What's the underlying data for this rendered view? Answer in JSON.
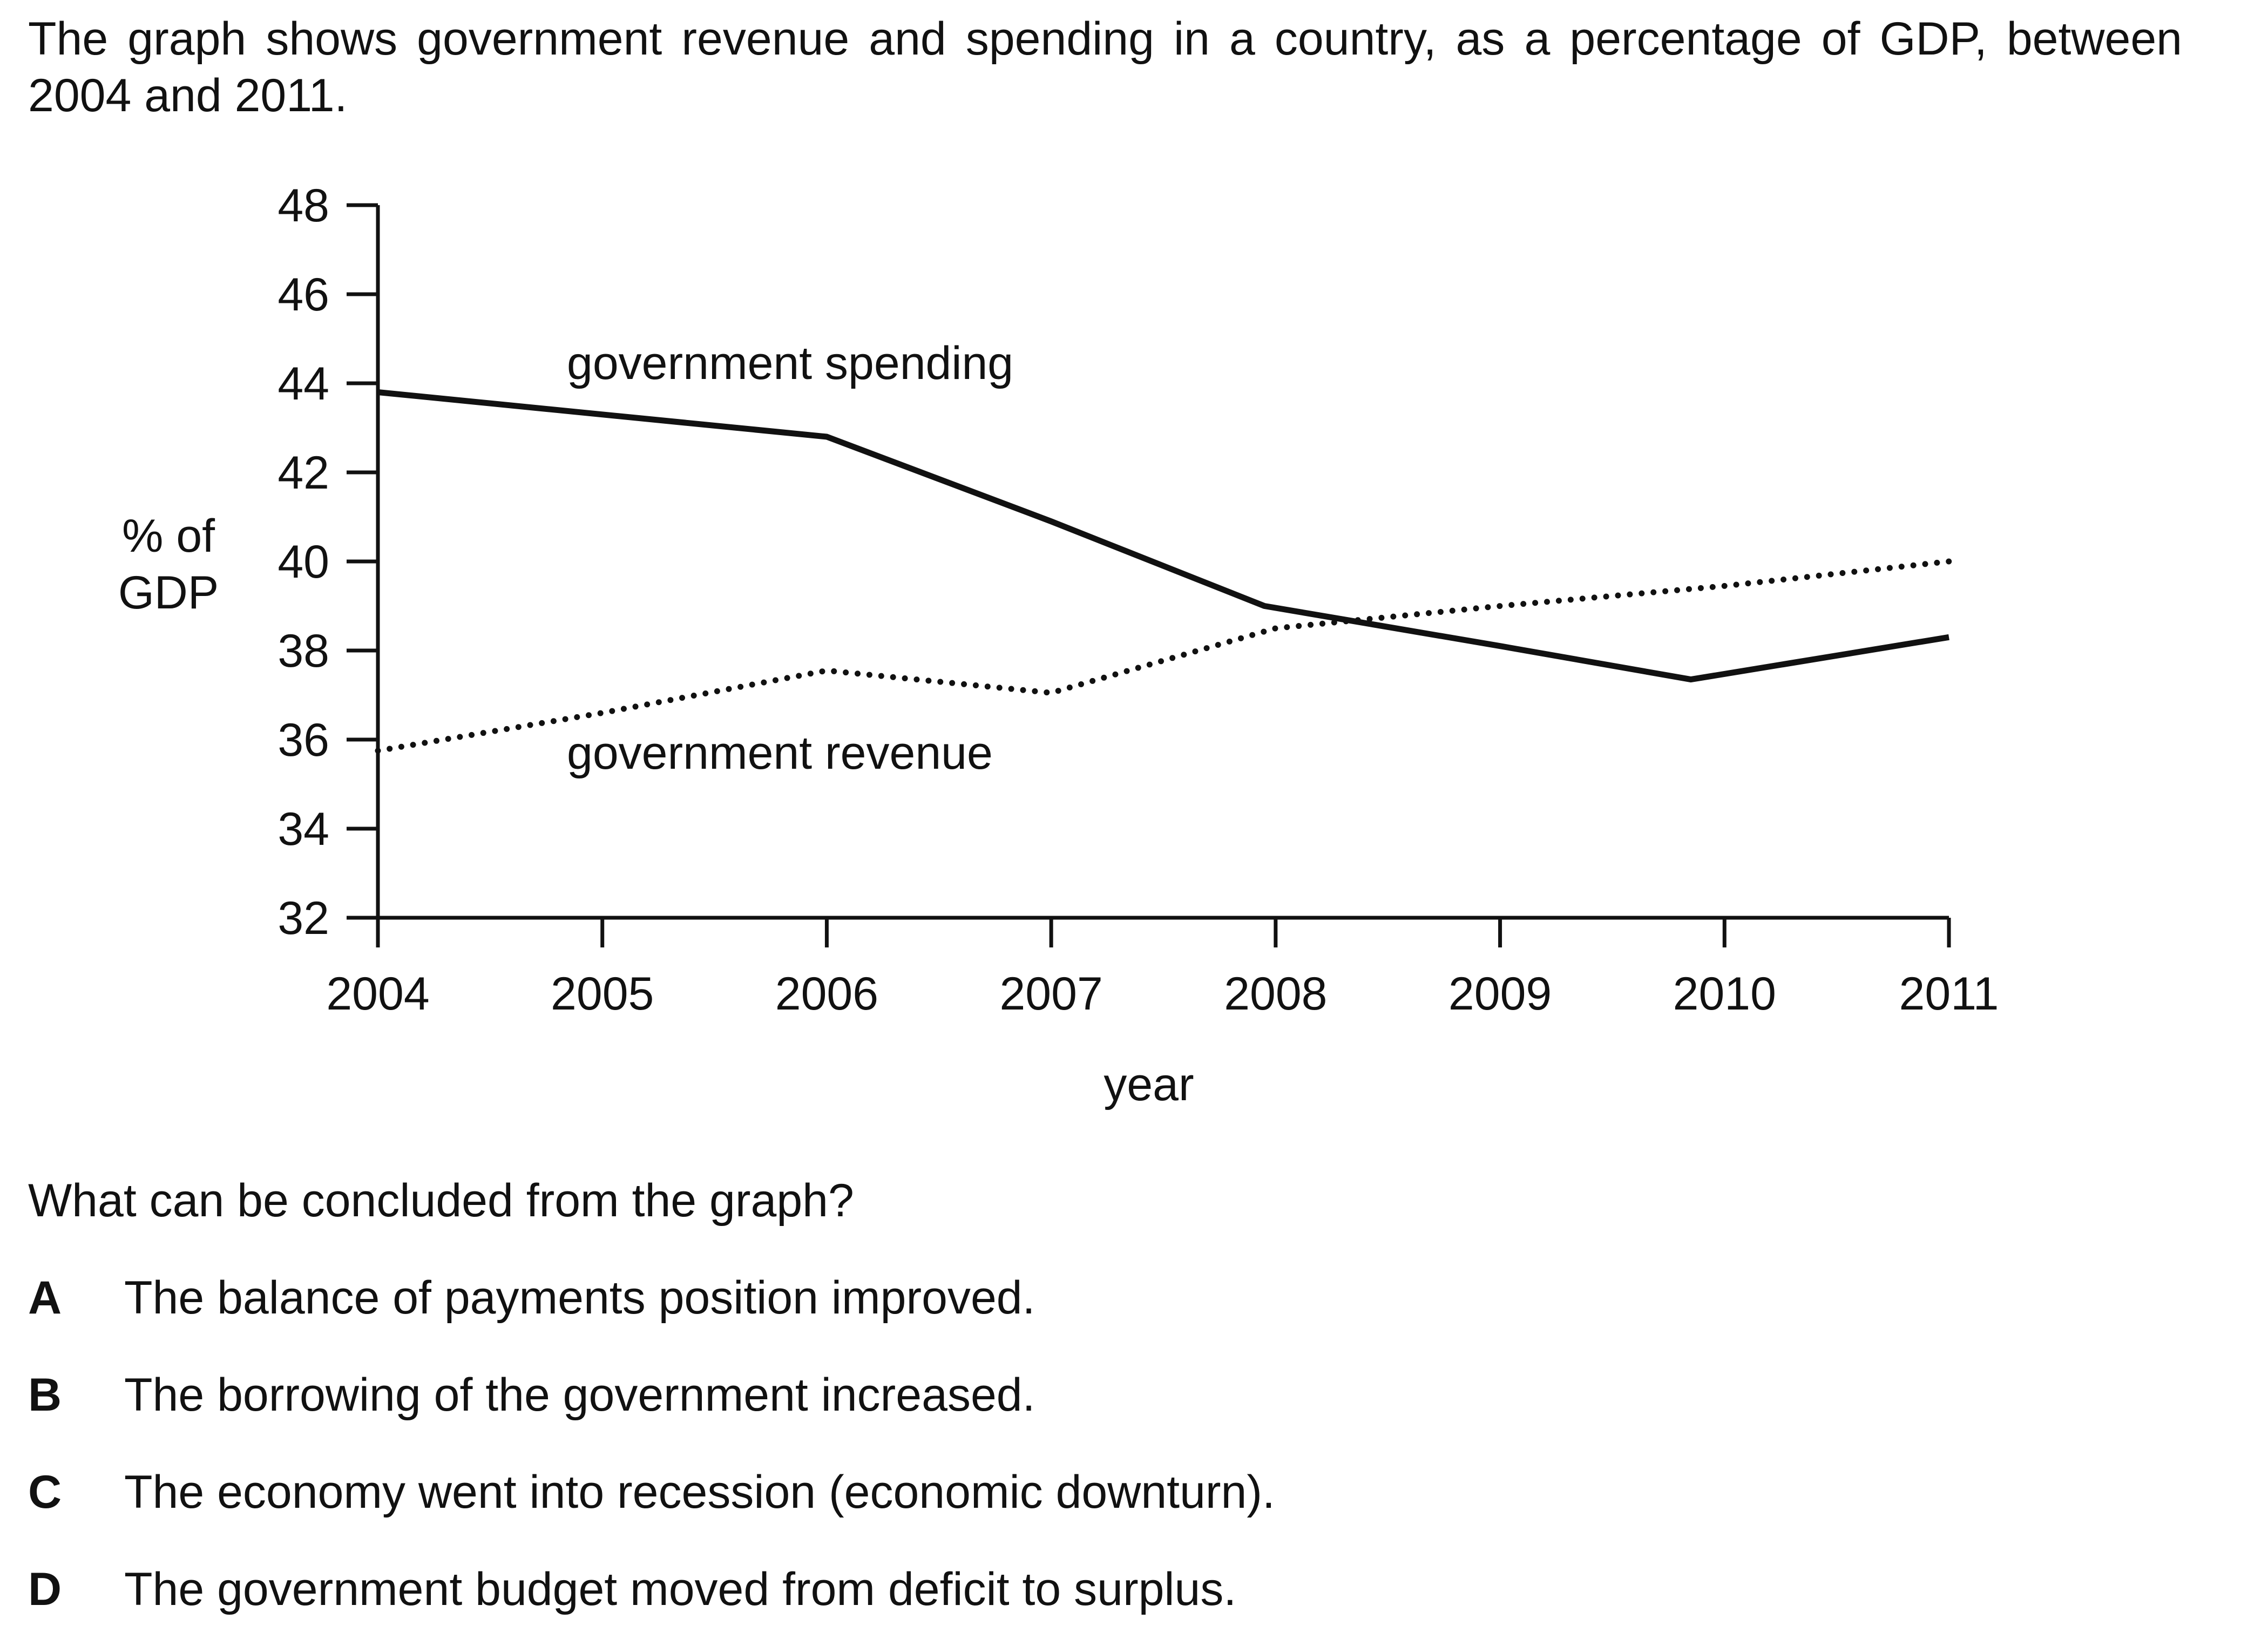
{
  "intro": "The graph shows government revenue and spending in a country, as a percentage of GDP, between 2004 and 2011.",
  "question": "What can be concluded from the graph?",
  "options": [
    {
      "letter": "A",
      "text": "The balance of payments position improved."
    },
    {
      "letter": "B",
      "text": "The borrowing of the government increased."
    },
    {
      "letter": "C",
      "text": "The economy went into recession (economic downturn)."
    },
    {
      "letter": "D",
      "text": "The government budget moved from deficit to surplus."
    }
  ],
  "chart_data": {
    "type": "line",
    "xlabel": "year",
    "ylabel_lines": [
      "% of",
      "GDP"
    ],
    "x": [
      2004,
      2005,
      2006,
      2007,
      2008,
      2009,
      2010,
      2011
    ],
    "xlim": [
      2004,
      2011
    ],
    "ylim": [
      32,
      48
    ],
    "yticks": [
      32,
      34,
      36,
      38,
      40,
      42,
      44,
      46,
      48
    ],
    "grid": false,
    "legend": "inline labels",
    "series": [
      {
        "name": "government spending",
        "style": "solid",
        "points": [
          [
            2004,
            43.8
          ],
          [
            2005,
            43.3
          ],
          [
            2006,
            42.8
          ],
          [
            2007,
            40.9
          ],
          [
            2007.95,
            39.0
          ],
          [
            2009,
            38.1
          ],
          [
            2009.85,
            37.35
          ],
          [
            2011,
            38.3
          ]
        ]
      },
      {
        "name": "government revenue",
        "style": "dotted",
        "points": [
          [
            2004,
            35.75
          ],
          [
            2005,
            36.6
          ],
          [
            2006,
            37.55
          ],
          [
            2007,
            37.05
          ],
          [
            2008,
            38.5
          ],
          [
            2009,
            39.0
          ],
          [
            2010,
            39.45
          ],
          [
            2011,
            40.0
          ]
        ]
      }
    ],
    "colors": {
      "line": "#111111"
    }
  }
}
